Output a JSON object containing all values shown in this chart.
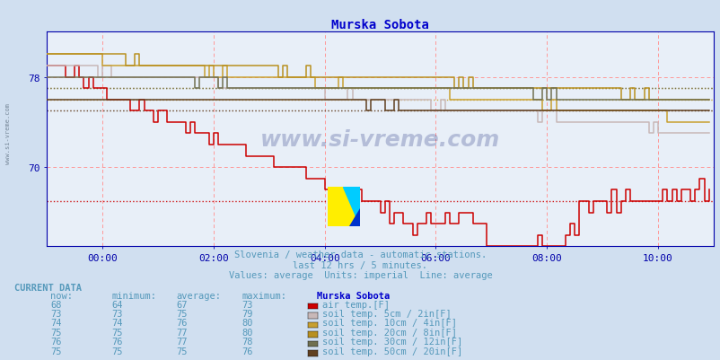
{
  "title": "Murska Sobota",
  "subtitle1": "Slovenia / weather data - automatic stations.",
  "subtitle2": "last 12 hrs / 5 minutes.",
  "subtitle3": "Values: average  Units: imperial  Line: average",
  "bg_color": "#d0dff0",
  "plot_bg_color": "#e8eff8",
  "title_color": "#0000cc",
  "subtitle_color": "#5599bb",
  "axis_color": "#0000aa",
  "watermark": "www.si-vreme.com",
  "watermark_color": "#1a2a7a",
  "x_ticks": [
    12,
    36,
    60,
    84,
    108,
    132
  ],
  "x_tick_labels": [
    "00:00",
    "02:00",
    "04:00",
    "06:00",
    "08:00",
    "10:00"
  ],
  "y_min": 63,
  "y_max": 82,
  "y_ticks": [
    70,
    78
  ],
  "avg_air": 67,
  "avg_soil5": 75,
  "avg_soil10": 76,
  "avg_soil20": 77,
  "avg_soil30": 77,
  "avg_soil50": 75,
  "color_air": "#cc0000",
  "color_soil5": "#c8b8b8",
  "color_soil10": "#c8a030",
  "color_soil20": "#b89020",
  "color_soil30": "#707050",
  "color_soil50": "#604020",
  "table_header_color": "#5599bb",
  "table_data_color": "#5599bb",
  "table_label_color": "#5599bb",
  "current_data_label": "CURRENT DATA",
  "current_data_color": "#5599bb",
  "station_label": "Murska Sobota",
  "station_label_color": "#0000cc",
  "rows": [
    [
      68,
      64,
      67,
      73,
      "#cc0000",
      "air temp.[F]"
    ],
    [
      73,
      73,
      75,
      79,
      "#c8b8b8",
      "soil temp. 5cm / 2in[F]"
    ],
    [
      74,
      74,
      76,
      80,
      "#c8a030",
      "soil temp. 10cm / 4in[F]"
    ],
    [
      75,
      75,
      77,
      80,
      "#b89020",
      "soil temp. 20cm / 8in[F]"
    ],
    [
      76,
      76,
      77,
      78,
      "#707050",
      "soil temp. 30cm / 12in[F]"
    ],
    [
      75,
      75,
      75,
      76,
      "#604020",
      "soil temp. 50cm / 20in[F]"
    ]
  ]
}
